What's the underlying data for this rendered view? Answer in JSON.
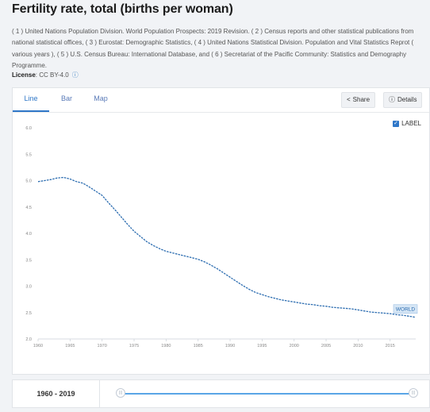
{
  "page": {
    "title": "Fertility rate, total (births per woman)",
    "sources": "( 1 ) United Nations Population Division. World Population Prospects: 2019 Revision. ( 2 ) Census reports and other statistical publications from national statistical offices, ( 3 ) Eurostat: Demographic Statistics, ( 4 ) United Nations Statistical Division. Population and Vital Statistics Reprot ( various years ), ( 5 ) U.S. Census Bureau: International Database, and ( 6 ) Secretariat of the Pacific Community: Statistics and Demography Programme.",
    "license_label": "License",
    "license_value": ": CC BY-4.0",
    "license_info_icon": "ⓘ"
  },
  "tabs": [
    {
      "label": "Line",
      "active": true
    },
    {
      "label": "Bar",
      "active": false
    },
    {
      "label": "Map",
      "active": false
    }
  ],
  "actions": {
    "share_label": "Share",
    "share_icon": "share-icon",
    "details_label": "Details",
    "details_icon": "info-icon"
  },
  "legend": {
    "label": "LABEL",
    "checked": true
  },
  "range": {
    "label": "1960 - 2019",
    "handle_glyph": "|||"
  },
  "colors": {
    "accent": "#2f77c8",
    "line": "#2b6cb0",
    "series_label_bg": "#d6e6f5"
  },
  "chart_data": {
    "type": "line",
    "title": "",
    "xlabel": "",
    "ylabel": "",
    "xlim": [
      1960,
      2019
    ],
    "ylim": [
      2.0,
      6.0
    ],
    "grid": false,
    "xticks": [
      1960,
      1965,
      1970,
      1975,
      1980,
      1985,
      1990,
      1995,
      2000,
      2005,
      2010,
      2015
    ],
    "xtick_labels": [
      "1960",
      "1965",
      "1970",
      "1975",
      "1980",
      "1985",
      "1990",
      "1995",
      "2000",
      "2005",
      "2010",
      "2015"
    ],
    "yticks": [
      2.0,
      2.5,
      3.0,
      3.5,
      4.0,
      4.5,
      5.0,
      5.5,
      6.0
    ],
    "ytick_labels": [
      "2.0",
      "2.5",
      "3.0",
      "3.5",
      "4.0",
      "4.5",
      "5.0",
      "5.5",
      "6.0"
    ],
    "series": [
      {
        "name": "WORLD",
        "x": [
          1960,
          1961,
          1962,
          1963,
          1964,
          1965,
          1966,
          1967,
          1968,
          1969,
          1970,
          1971,
          1972,
          1973,
          1974,
          1975,
          1976,
          1977,
          1978,
          1979,
          1980,
          1981,
          1982,
          1983,
          1984,
          1985,
          1986,
          1987,
          1988,
          1989,
          1990,
          1991,
          1992,
          1993,
          1994,
          1995,
          1996,
          1997,
          1998,
          1999,
          2000,
          2001,
          2002,
          2003,
          2004,
          2005,
          2006,
          2007,
          2008,
          2009,
          2010,
          2011,
          2012,
          2013,
          2014,
          2015,
          2016,
          2017,
          2018,
          2019
        ],
        "values": [
          4.98,
          5.0,
          5.02,
          5.05,
          5.06,
          5.03,
          4.98,
          4.95,
          4.88,
          4.8,
          4.72,
          4.58,
          4.45,
          4.31,
          4.17,
          4.04,
          3.94,
          3.84,
          3.77,
          3.71,
          3.66,
          3.63,
          3.6,
          3.57,
          3.54,
          3.51,
          3.46,
          3.4,
          3.33,
          3.25,
          3.17,
          3.09,
          3.01,
          2.94,
          2.88,
          2.84,
          2.8,
          2.77,
          2.74,
          2.72,
          2.7,
          2.68,
          2.66,
          2.65,
          2.63,
          2.62,
          2.6,
          2.59,
          2.58,
          2.57,
          2.55,
          2.53,
          2.51,
          2.5,
          2.49,
          2.48,
          2.46,
          2.45,
          2.43,
          2.41
        ]
      }
    ]
  }
}
